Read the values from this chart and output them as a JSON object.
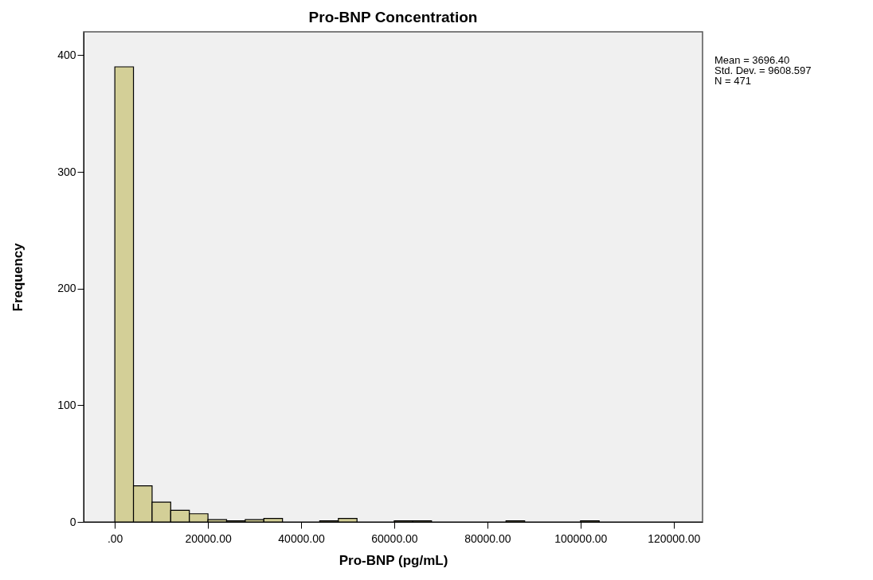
{
  "chart_data": {
    "type": "histogram",
    "title": "Pro-BNP Concentration",
    "xlabel": "Pro-BNP (pg/mL)",
    "ylabel": "Frequency",
    "bins": [
      0,
      4000,
      8000,
      12000,
      16000,
      20000,
      24000,
      28000,
      32000,
      36000,
      40000,
      44000,
      48000,
      52000,
      56000,
      60000,
      64000,
      68000,
      72000,
      76000,
      80000,
      84000,
      88000,
      92000,
      96000,
      100000,
      104000
    ],
    "values": [
      390,
      31,
      17,
      10,
      7,
      2,
      1,
      2,
      3,
      0,
      0,
      1,
      3,
      0,
      0,
      1,
      1,
      0,
      0,
      0,
      0,
      1,
      0,
      0,
      0,
      1
    ],
    "color": "#d3cf97",
    "xlim": [
      -6700,
      126200
    ],
    "ylim": [
      0,
      420
    ],
    "xticks": [
      {
        "value": 0,
        "label": ".00"
      },
      {
        "value": 20000,
        "label": "20000.00"
      },
      {
        "value": 40000,
        "label": "40000.00"
      },
      {
        "value": 60000,
        "label": "60000.00"
      },
      {
        "value": 80000,
        "label": "80000.00"
      },
      {
        "value": 100000,
        "label": "100000.00"
      },
      {
        "value": 120000,
        "label": "120000.00"
      }
    ],
    "yticks": [
      0,
      100,
      200,
      300,
      400
    ],
    "grid": false,
    "annotations": [
      "Mean = 3696.40",
      "Std. Dev. = 9608.597",
      "N = 471"
    ]
  }
}
